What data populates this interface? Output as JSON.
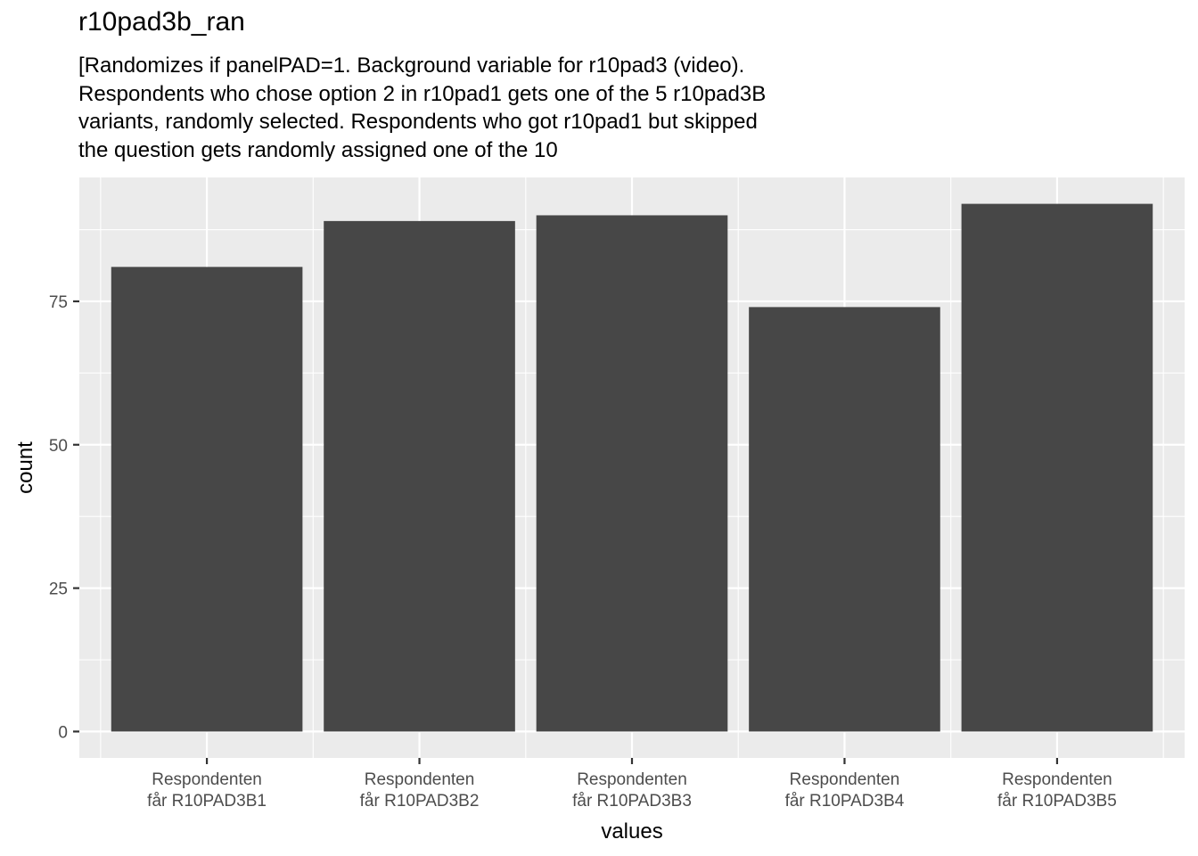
{
  "chart_data": {
    "type": "bar",
    "title": "r10pad3b_ran",
    "subtitle_lines": [
      "[Randomizes if panelPAD=1. Background variable for r10pad3 (video).",
      "Respondents who chose option 2 in r10pad1 gets one of the 5 r10pad3B",
      "variants, randomly selected. Respondents who got r10pad1 but skipped",
      "the question gets randomly assigned one of the 10"
    ],
    "categories": [
      [
        "Respondenten",
        "får R10PAD3B1"
      ],
      [
        "Respondenten",
        "får R10PAD3B2"
      ],
      [
        "Respondenten",
        "får R10PAD3B3"
      ],
      [
        "Respondenten",
        "får R10PAD3B4"
      ],
      [
        "Respondenten",
        "får R10PAD3B5"
      ]
    ],
    "values": [
      81,
      89,
      90,
      74,
      92
    ],
    "xlabel": "values",
    "ylabel": "count",
    "ylim": [
      -4.6,
      96.6
    ],
    "yticks": [
      0,
      25,
      50,
      75
    ],
    "grid": true,
    "colors": {
      "panel": "#ebebeb",
      "bar": "#474747",
      "grid": "#ffffff",
      "tick": "#4d4d4d"
    }
  }
}
